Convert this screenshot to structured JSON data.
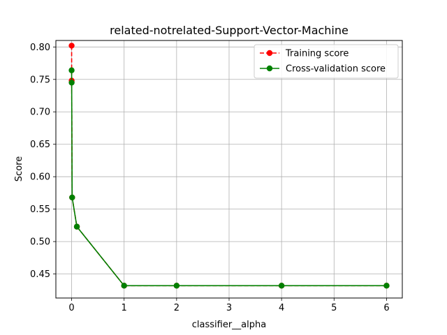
{
  "chart_data": {
    "type": "line",
    "title": "related-notrelated-Support-Vector-Machine",
    "xlabel": "classifier__alpha",
    "ylabel": "Score",
    "xlim": [
      -0.3,
      6.3
    ],
    "ylim": [
      0.413,
      0.81
    ],
    "x_ticks": [
      0,
      1,
      2,
      3,
      4,
      5,
      6
    ],
    "y_ticks": [
      0.45,
      0.5,
      0.55,
      0.6,
      0.65,
      0.7,
      0.75,
      0.8
    ],
    "grid": true,
    "legend_position": "top-right",
    "series": [
      {
        "name": "Training score",
        "color": "#ff0000",
        "line_style": "dashed",
        "marker": "circle",
        "x": [
          0.0001,
          0.001,
          0.01,
          0.1,
          1,
          2,
          4,
          6
        ],
        "y": [
          0.802,
          0.748,
          0.568,
          0.523,
          0.432,
          0.432,
          0.432,
          0.432
        ]
      },
      {
        "name": "Cross-validation score",
        "color": "#008000",
        "line_style": "solid",
        "marker": "circle",
        "x": [
          0.0001,
          0.001,
          0.01,
          0.1,
          1,
          2,
          4,
          6
        ],
        "y": [
          0.764,
          0.745,
          0.568,
          0.523,
          0.432,
          0.432,
          0.432,
          0.432
        ]
      }
    ]
  }
}
